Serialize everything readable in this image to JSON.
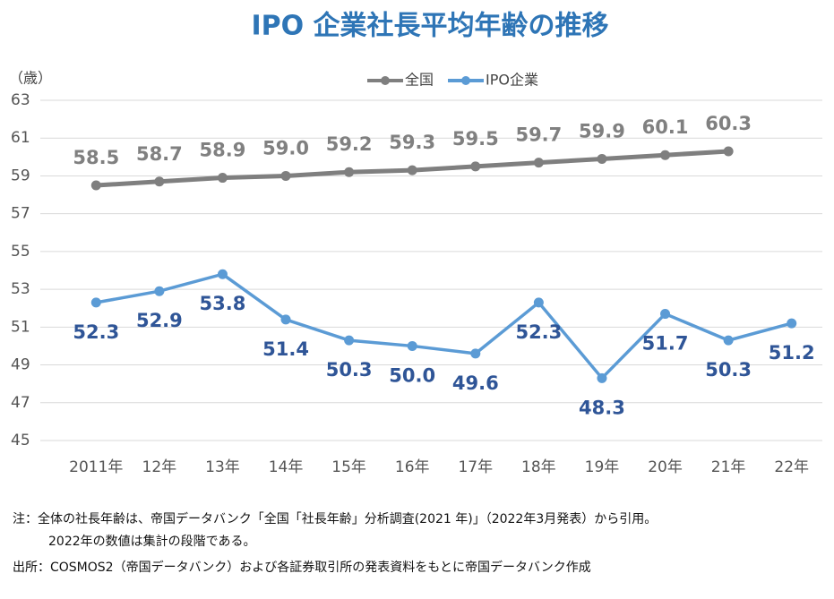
{
  "chart_data": {
    "type": "line",
    "title": "IPO 企業社長平均年齢の推移",
    "y_label": "（歳）",
    "categories": [
      "2011年",
      "12年",
      "13年",
      "14年",
      "15年",
      "16年",
      "17年",
      "18年",
      "19年",
      "20年",
      "21年",
      "22年"
    ],
    "series": [
      {
        "name": "全国",
        "color": "#7f7f7f",
        "label_color": "#808080",
        "values": [
          58.5,
          58.7,
          58.9,
          59.0,
          59.2,
          59.3,
          59.5,
          59.7,
          59.9,
          60.1,
          60.3,
          null
        ],
        "value_labels": [
          "58.5",
          "58.7",
          "58.9",
          "59.0",
          "59.2",
          "59.3",
          "59.5",
          "59.7",
          "59.9",
          "60.1",
          "60.3",
          null
        ]
      },
      {
        "name": "IPO企業",
        "color": "#5b9bd5",
        "label_color": "#2f5597",
        "values": [
          52.3,
          52.9,
          53.8,
          51.4,
          50.3,
          50.0,
          49.6,
          52.3,
          48.3,
          51.7,
          50.3,
          51.2
        ],
        "value_labels": [
          "52.3",
          "52.9",
          "53.8",
          "51.4",
          "50.3",
          "50.0",
          "49.6",
          "52.3",
          "48.3",
          "51.7",
          "50.3",
          "51.2"
        ]
      }
    ],
    "ylim": [
      45,
      63
    ],
    "yticks": [
      45,
      47,
      49,
      51,
      53,
      55,
      57,
      59,
      61,
      63
    ],
    "grid": true,
    "notes": [
      "注：全体の社長年齢は、帝国データバンク「全国「社長年齢」分析調査(2021 年)」（2022年3月発表）から引用。",
      "2022年の数値は集計の段階である。",
      "出所：COSMOS2（帝国データバンク）および各証券取引所の発表資料をもとに帝国データバンク作成"
    ]
  }
}
